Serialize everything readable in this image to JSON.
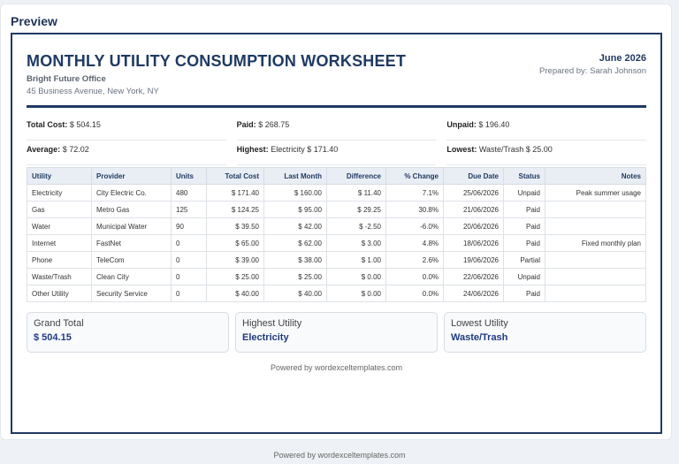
{
  "preview_label": "Preview",
  "doc": {
    "title": "MONTHLY UTILITY CONSUMPTION WORKSHEET",
    "company": "Bright Future Office",
    "address": "45 Business Avenue, New York, NY",
    "period": "June 2026",
    "prepared_by": "Prepared by: Sarah Johnson"
  },
  "summary": {
    "total_label": "Total Cost:",
    "total_value": "$ 504.15",
    "paid_label": "Paid:",
    "paid_value": "$ 268.75",
    "unpaid_label": "Unpaid:",
    "unpaid_value": "$ 196.40",
    "average_label": "Average:",
    "average_value": "$ 72.02",
    "highest_label": "Highest:",
    "highest_value": "Electricity $ 171.40",
    "lowest_label": "Lowest:",
    "lowest_value": "Waste/Trash $ 25.00"
  },
  "table": {
    "headers": [
      "Utility",
      "Provider",
      "Units",
      "Total Cost",
      "Last Month",
      "Difference",
      "% Change",
      "Due Date",
      "Status",
      "Notes"
    ],
    "rows": [
      [
        "Electricity",
        "City Electric Co.",
        "480",
        "$ 171.40",
        "$ 160.00",
        "$ 11.40",
        "7.1%",
        "25/06/2026",
        "Unpaid",
        "Peak summer usage"
      ],
      [
        "Gas",
        "Metro Gas",
        "125",
        "$ 124.25",
        "$ 95.00",
        "$ 29.25",
        "30.8%",
        "21/06/2026",
        "Paid",
        ""
      ],
      [
        "Water",
        "Municipal Water",
        "90",
        "$ 39.50",
        "$ 42.00",
        "$ -2.50",
        "-6.0%",
        "20/06/2026",
        "Paid",
        ""
      ],
      [
        "Internet",
        "FastNet",
        "0",
        "$ 65.00",
        "$ 62.00",
        "$ 3.00",
        "4.8%",
        "18/06/2026",
        "Paid",
        "Fixed monthly plan"
      ],
      [
        "Phone",
        "TeleCom",
        "0",
        "$ 39.00",
        "$ 38.00",
        "$ 1.00",
        "2.6%",
        "19/06/2026",
        "Partial",
        ""
      ],
      [
        "Waste/Trash",
        "Clean City",
        "0",
        "$ 25.00",
        "$ 25.00",
        "$ 0.00",
        "0.0%",
        "22/06/2026",
        "Unpaid",
        ""
      ],
      [
        "Other Utility",
        "Security Service",
        "0",
        "$ 40.00",
        "$ 40.00",
        "$ 0.00",
        "0.0%",
        "24/06/2026",
        "Paid",
        ""
      ]
    ]
  },
  "boxes": [
    {
      "label": "Grand Total",
      "value": "$ 504.15"
    },
    {
      "label": "Highest Utility",
      "value": "Electricity"
    },
    {
      "label": "Lowest Utility",
      "value": "Waste/Trash"
    }
  ],
  "doc_footer": "Powered by wordexceltemplates.com",
  "page_footer": "Powered by wordexceltemplates.com"
}
